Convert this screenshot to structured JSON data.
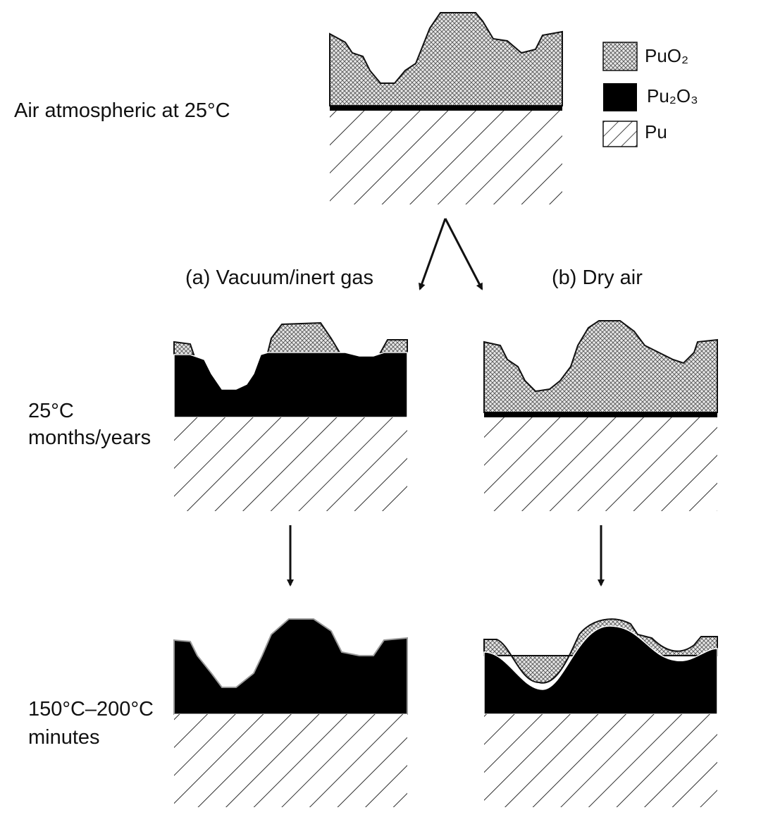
{
  "header": {
    "label": "Air atmospheric at 25°C"
  },
  "branches": [
    {
      "label": "(a) Vacuum/inert gas"
    },
    {
      "label": "(b) Dry air"
    }
  ],
  "stages": [
    {
      "lines": [
        "25°C",
        "months/years"
      ]
    },
    {
      "lines": [
        "150°C–200°C",
        "minutes"
      ]
    }
  ],
  "legend": [
    {
      "label": "PuO₂"
    },
    {
      "label": "Pu₂O₃"
    },
    {
      "label": "Pu"
    }
  ]
}
